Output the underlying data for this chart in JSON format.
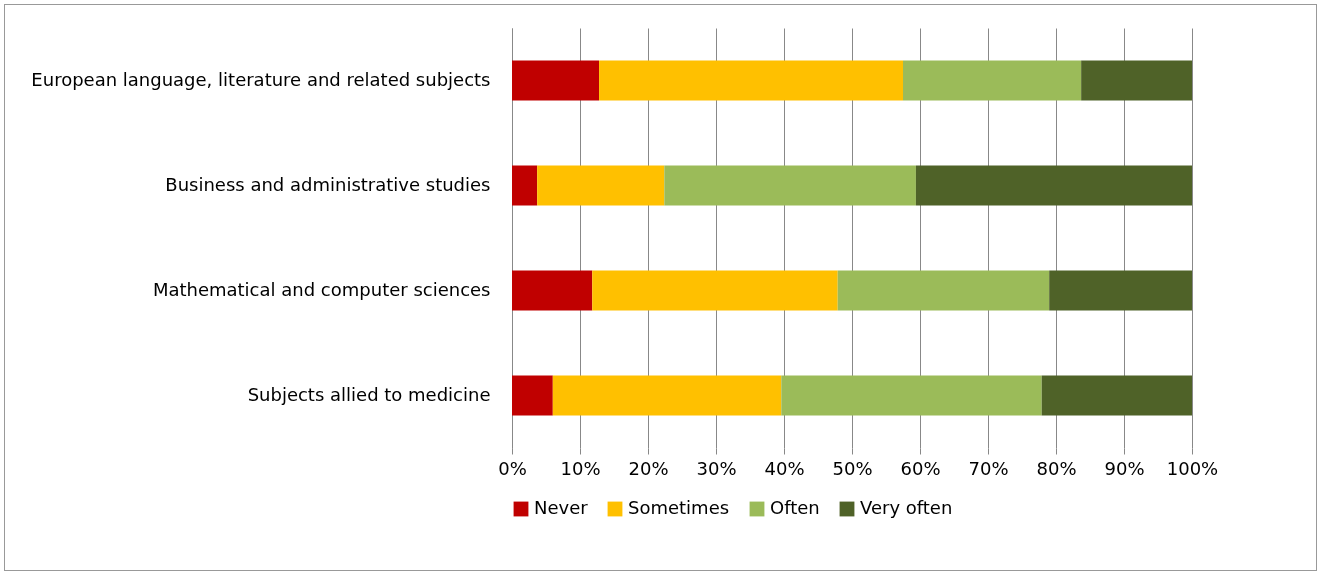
{
  "chart_data": {
    "type": "bar",
    "orientation": "horizontal",
    "stacked": true,
    "categories": [
      "European language, literature and related subjects",
      "Business and administrative studies",
      "Mathematical and computer sciences",
      "Subjects allied to medicine"
    ],
    "series": [
      {
        "name": "Never",
        "color": "#c00000",
        "values": [
          12.8,
          3.7,
          11.8,
          6.0
        ]
      },
      {
        "name": "Sometimes",
        "color": "#ffc000",
        "values": [
          44.7,
          18.7,
          36.1,
          33.6
        ]
      },
      {
        "name": "Often",
        "color": "#9bbb59",
        "values": [
          26.2,
          37.0,
          31.1,
          38.3
        ]
      },
      {
        "name": "Very often",
        "color": "#4f6228",
        "values": [
          16.3,
          40.6,
          21.0,
          22.1
        ]
      }
    ],
    "xlim": [
      0,
      100
    ],
    "xticks": [
      {
        "value": 0,
        "label": "0%"
      },
      {
        "value": 10,
        "label": "10%"
      },
      {
        "value": 20,
        "label": "20%"
      },
      {
        "value": 30,
        "label": "30%"
      },
      {
        "value": 40,
        "label": "40%"
      },
      {
        "value": 50,
        "label": "50%"
      },
      {
        "value": 60,
        "label": "60%"
      },
      {
        "value": 70,
        "label": "70%"
      },
      {
        "value": 80,
        "label": "80%"
      },
      {
        "value": 90,
        "label": "90%"
      },
      {
        "value": 100,
        "label": "100%"
      }
    ],
    "grid": "x",
    "legend": "bottom"
  }
}
